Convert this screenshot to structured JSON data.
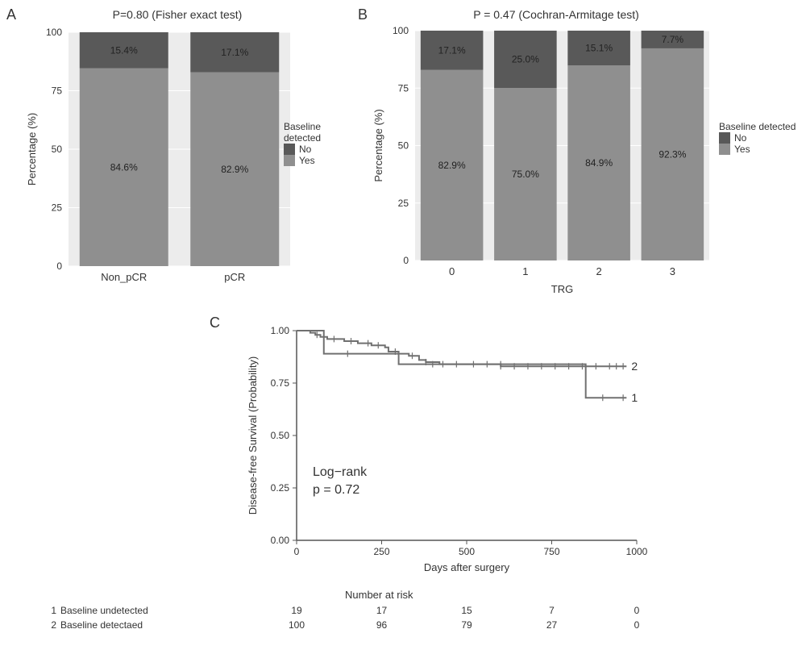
{
  "palette": {
    "no": "#595959",
    "yes": "#8f8f8f",
    "line1": "#707070",
    "line2": "#909090",
    "axis": "#555555",
    "grid": "#cccccc",
    "bg": "#ffffff",
    "panel_bg": "#ececec",
    "text": "#333333"
  },
  "panelA": {
    "label": "A",
    "title": "P=0.80 (Fisher exact test)",
    "ylabel": "Percentage (%)",
    "ylim": [
      0,
      100
    ],
    "ytick_step": 25,
    "categories": [
      "Non_pCR",
      "pCR"
    ],
    "series": [
      {
        "name": "No",
        "color_key": "no",
        "values": [
          15.4,
          17.1
        ],
        "labels": [
          "15.4%",
          "17.1%"
        ]
      },
      {
        "name": "Yes",
        "color_key": "yes",
        "values": [
          84.6,
          82.9
        ],
        "labels": [
          "84.6%",
          "82.9%"
        ]
      }
    ],
    "legend_title": "Baseline detected",
    "bar_width": 0.8
  },
  "panelB": {
    "label": "B",
    "title": "P = 0.47 (Cochran-Armitage test)",
    "ylabel": "Percentage (%)",
    "xlabel": "TRG",
    "ylim": [
      0,
      100
    ],
    "ytick_step": 25,
    "categories": [
      "0",
      "1",
      "2",
      "3"
    ],
    "series": [
      {
        "name": "No",
        "color_key": "no",
        "values": [
          17.1,
          25.0,
          15.1,
          7.7
        ],
        "labels": [
          "17.1%",
          "25.0%",
          "15.1%",
          "7.7%"
        ]
      },
      {
        "name": "Yes",
        "color_key": "yes",
        "values": [
          82.9,
          75.0,
          84.9,
          92.3
        ],
        "labels": [
          "82.9%",
          "75.0%",
          "84.9%",
          "92.3%"
        ]
      }
    ],
    "legend_title": "Baseline detected",
    "bar_width": 0.85
  },
  "panelC": {
    "label": "C",
    "ylabel": "Disease-free Survival (Probability)",
    "xlabel": "Days after surgery",
    "xlim": [
      0,
      1000
    ],
    "xtick_step": 250,
    "ylim": [
      0,
      1.0
    ],
    "ytick_step": 0.25,
    "annotation_lines": [
      "Log−rank",
      "p = 0.72"
    ],
    "annotation_fontsize": 16,
    "curve_line_color_key": "line1",
    "curve_line_width": 2,
    "curves": [
      {
        "id": "1",
        "end_label": "1",
        "points": [
          [
            0,
            1.0
          ],
          [
            80,
            0.95
          ],
          [
            80,
            0.89
          ],
          [
            300,
            0.89
          ],
          [
            300,
            0.84
          ],
          [
            850,
            0.84
          ],
          [
            850,
            0.68
          ],
          [
            970,
            0.68
          ]
        ]
      },
      {
        "id": "2",
        "end_label": "2",
        "points": [
          [
            0,
            1.0
          ],
          [
            40,
            0.99
          ],
          [
            55,
            0.98
          ],
          [
            70,
            0.97
          ],
          [
            90,
            0.96
          ],
          [
            140,
            0.95
          ],
          [
            180,
            0.94
          ],
          [
            220,
            0.93
          ],
          [
            260,
            0.92
          ],
          [
            270,
            0.9
          ],
          [
            300,
            0.89
          ],
          [
            330,
            0.88
          ],
          [
            360,
            0.86
          ],
          [
            380,
            0.85
          ],
          [
            420,
            0.84
          ],
          [
            500,
            0.84
          ],
          [
            600,
            0.83
          ],
          [
            970,
            0.83
          ]
        ]
      }
    ],
    "censor_ticks_2": [
      60,
      110,
      160,
      210,
      240,
      290,
      340,
      380,
      430,
      470,
      520,
      560,
      600,
      640,
      680,
      720,
      760,
      800,
      840,
      880,
      920,
      940,
      960
    ],
    "censor_ticks_1": [
      150,
      400,
      600,
      900,
      960
    ],
    "risk_table": {
      "title": "Number at risk",
      "rows": [
        {
          "id": "1",
          "label": "Baseline undetected",
          "counts": [
            19,
            17,
            15,
            7,
            0
          ]
        },
        {
          "id": "2",
          "label": "Baseline detectaed",
          "counts": [
            100,
            96,
            79,
            27,
            0
          ]
        }
      ],
      "xticks": [
        0,
        250,
        500,
        750,
        1000
      ]
    }
  }
}
